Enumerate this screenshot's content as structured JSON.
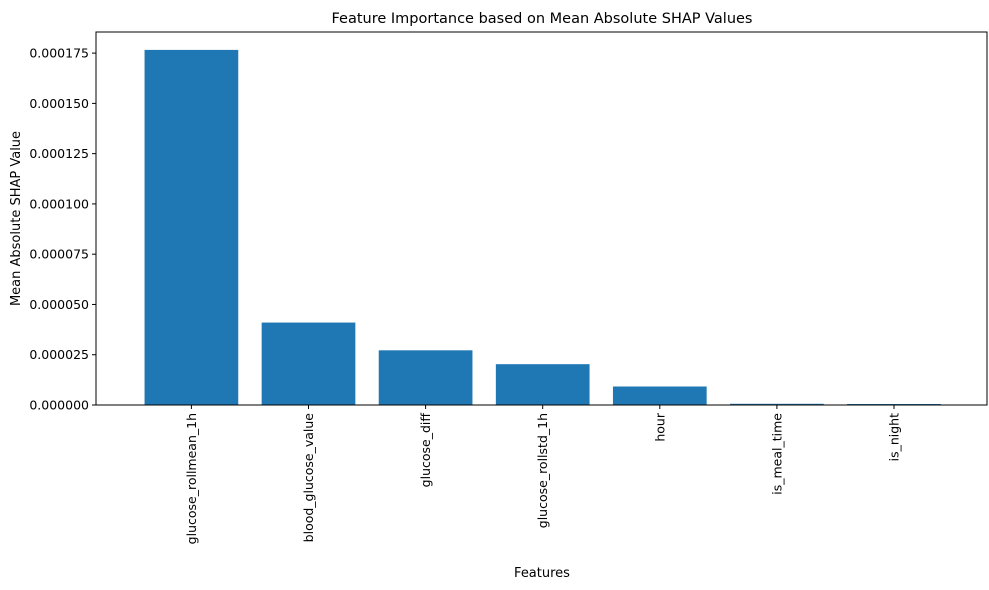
{
  "chart_data": {
    "type": "bar",
    "title": "Feature Importance based on Mean Absolute SHAP Values",
    "xlabel": "Features",
    "ylabel": "Mean Absolute SHAP Value",
    "categories": [
      "glucose_rollmean_1h",
      "blood_glucose_value",
      "glucose_diff",
      "glucose_rollstd_1h",
      "hour",
      "is_meal_time",
      "is_night"
    ],
    "values": [
      0.0001766,
      4.1e-05,
      2.72e-05,
      2.03e-05,
      9.2e-06,
      6e-07,
      5e-07
    ],
    "ylim": [
      0,
      0.0001855
    ],
    "yticks": [
      0,
      2.5e-05,
      5e-05,
      7.5e-05,
      0.0001,
      0.000125,
      0.00015,
      0.000175
    ],
    "ytick_labels": [
      "0.000000",
      "0.000025",
      "0.000050",
      "0.000075",
      "0.000100",
      "0.000125",
      "0.000150",
      "0.000175"
    ],
    "bar_color": "#1f77b4",
    "grid": false,
    "legend": false
  }
}
